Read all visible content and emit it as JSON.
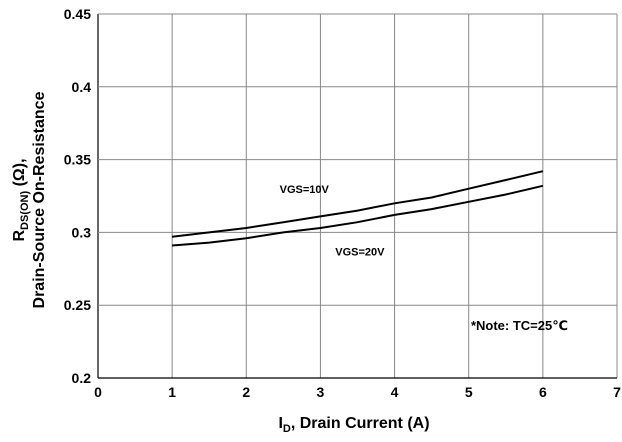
{
  "chart_data": {
    "type": "line",
    "xlabel": {
      "main": "I",
      "sub": "D",
      "rest": ", Drain Current (A)"
    },
    "ylabel": {
      "line1_main": "R",
      "line1_sub": "DS(ON)",
      "line1_rest": " (Ω),",
      "line2": "Drain-Source On-Resistance"
    },
    "xlim": [
      0,
      7
    ],
    "ylim": [
      0.2,
      0.45
    ],
    "x_ticks": [
      0,
      1,
      2,
      3,
      4,
      5,
      6,
      7
    ],
    "y_ticks": [
      0.2,
      0.25,
      0.3,
      0.35,
      0.4,
      0.45
    ],
    "x_tick_labels": [
      "0",
      "1",
      "2",
      "3",
      "4",
      "5",
      "6",
      "7"
    ],
    "y_tick_labels": [
      "0.2",
      "0.25",
      "0.3",
      "0.35",
      "0.4",
      "0.45"
    ],
    "grid": true,
    "series": [
      {
        "name": "VGS=10V",
        "x": [
          1,
          1.5,
          2,
          2.5,
          3,
          3.5,
          4,
          4.5,
          5,
          5.5,
          6
        ],
        "y": [
          0.297,
          0.3,
          0.303,
          0.307,
          0.311,
          0.315,
          0.32,
          0.324,
          0.33,
          0.336,
          0.342
        ]
      },
      {
        "name": "VGS=20V",
        "x": [
          1,
          1.5,
          2,
          2.5,
          3,
          3.5,
          4,
          4.5,
          5,
          5.5,
          6
        ],
        "y": [
          0.291,
          0.293,
          0.296,
          0.3,
          0.303,
          0.307,
          0.312,
          0.316,
          0.321,
          0.326,
          0.332
        ]
      }
    ],
    "annotations": [
      {
        "text": "VGS=10V",
        "x": 2.45,
        "y": 0.327
      },
      {
        "text": "VGS=20V",
        "x": 3.2,
        "y": 0.284
      },
      {
        "text": "*Note: TC=25℃",
        "x": 5.03,
        "y": 0.233
      }
    ],
    "line_color": "#000000",
    "grid_color": "#888888"
  }
}
